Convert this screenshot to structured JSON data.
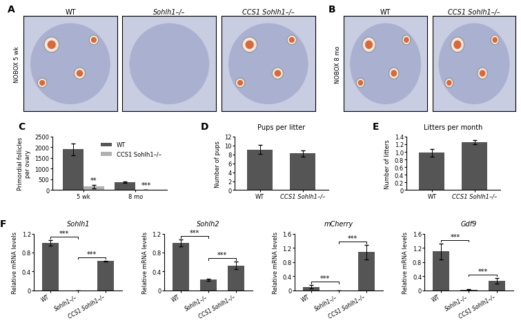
{
  "image_panels": [
    {
      "panel": "A",
      "side_label": "NOBOX 5 wk",
      "titles": [
        "WT",
        "Sohlh1–/–",
        "CCS1 Sohlh1–/–"
      ]
    },
    {
      "panel": "B",
      "side_label": "NOBOX 8 mo",
      "titles": [
        "WT",
        "CCS1 Sohlh1–/–"
      ]
    }
  ],
  "chart_data": [
    {
      "type": "bar",
      "panel": "C",
      "categories": [
        "5 wk",
        "8 mo"
      ],
      "series": [
        {
          "name": "WT",
          "color": "#555555",
          "values": [
            1900,
            370
          ],
          "errors": [
            270,
            20
          ]
        },
        {
          "name": "CCS1 Sohlh1–/–",
          "color": "#b0b0b0",
          "values": [
            170,
            15
          ],
          "errors": [
            80,
            5
          ]
        }
      ],
      "annotations": [
        {
          "category": "5 wk",
          "series": "CCS1 Sohlh1–/–",
          "text": "**"
        },
        {
          "category": "8 mo",
          "series": "CCS1 Sohlh1–/–",
          "text": "***"
        }
      ],
      "y_label": "Primordial follicles\nper ovary",
      "ylim": [
        0,
        2500
      ],
      "yticks": [
        0,
        500,
        1000,
        1500,
        2000,
        2500
      ],
      "legend": "upper right"
    },
    {
      "type": "bar",
      "panel": "D",
      "title": "Pups per litter",
      "categories": [
        "WT",
        "CCS1 Sohlh1–/–"
      ],
      "values": [
        9.1,
        8.2
      ],
      "errors": [
        1.0,
        0.7
      ],
      "color": "#555555",
      "y_label": "Number of pups",
      "ylim": [
        0,
        12
      ],
      "yticks": [
        0,
        2,
        4,
        6,
        8,
        10,
        12
      ]
    },
    {
      "type": "bar",
      "panel": "E",
      "title": "Litters per month",
      "categories": [
        "WT",
        "CCS1 Sohlh1–/–"
      ],
      "values": [
        0.98,
        1.25
      ],
      "errors": [
        0.1,
        0.05
      ],
      "color": "#555555",
      "y_label": "Number of litters",
      "ylim": [
        0,
        1.4
      ],
      "yticks": [
        0,
        0.2,
        0.4,
        0.6,
        0.8,
        1.0,
        1.2,
        1.4
      ]
    },
    {
      "type": "bar",
      "panel": "F",
      "title": "Sohlh1",
      "categories": [
        "WT",
        "Sohlh1–/–",
        "CCS1 Sohlh1–/–"
      ],
      "values": [
        1.0,
        0.0,
        0.62
      ],
      "errors": [
        0.06,
        0.0,
        0.01
      ],
      "color": "#555555",
      "y_label": "Relative mRNA levels",
      "ylim": [
        0,
        1.2
      ],
      "yticks": [
        0,
        0.4,
        0.8,
        1.2
      ],
      "brackets": [
        {
          "between": [
            "WT",
            "Sohlh1–/–"
          ],
          "text": "***"
        },
        {
          "between": [
            "Sohlh1–/–",
            "CCS1 Sohlh1–/–"
          ],
          "text": "***"
        }
      ]
    },
    {
      "type": "bar",
      "title": "Sohlh2",
      "categories": [
        "WT",
        "Sohlh1–/–",
        "CCS1 Sohlh1–/–"
      ],
      "values": [
        1.0,
        0.23,
        0.53
      ],
      "errors": [
        0.07,
        0.02,
        0.08
      ],
      "color": "#555555",
      "y_label": "Relative mRNA levels",
      "ylim": [
        0,
        1.2
      ],
      "yticks": [
        0,
        0.4,
        0.8,
        1.2
      ],
      "brackets": [
        {
          "between": [
            "WT",
            "Sohlh1–/–"
          ],
          "text": "***"
        },
        {
          "between": [
            "Sohlh1–/–",
            "CCS1 Sohlh1–/–"
          ],
          "text": "***"
        }
      ]
    },
    {
      "type": "bar",
      "title": "mCherry",
      "categories": [
        "WT",
        "Sohlh1–/–",
        "CCS1 Sohlh1–/–"
      ],
      "values": [
        0.1,
        0.0,
        1.08
      ],
      "errors": [
        0.05,
        0.0,
        0.2
      ],
      "color": "#555555",
      "y_label": "Relative mRNA levels",
      "ylim": [
        0,
        1.6
      ],
      "yticks": [
        0,
        0.4,
        0.8,
        1.2,
        1.6
      ],
      "brackets": [
        {
          "between": [
            "WT",
            "Sohlh1–/–"
          ],
          "text": "***"
        },
        {
          "between": [
            "Sohlh1–/–",
            "CCS1 Sohlh1–/–"
          ],
          "text": "***"
        }
      ]
    },
    {
      "type": "bar",
      "title": "Gdf9",
      "categories": [
        "WT",
        "Sohlh1–/–",
        "CCS1 Sohlh1–/–"
      ],
      "values": [
        1.1,
        0.02,
        0.27
      ],
      "errors": [
        0.22,
        0.01,
        0.08
      ],
      "color": "#555555",
      "y_label": "Relative mRNA levels",
      "ylim": [
        0,
        1.6
      ],
      "yticks": [
        0,
        0.4,
        0.8,
        1.2,
        1.6
      ],
      "brackets": [
        {
          "between": [
            "WT",
            "Sohlh1–/–"
          ],
          "text": "***"
        },
        {
          "between": [
            "Sohlh1–/–",
            "CCS1 Sohlh1–/–"
          ],
          "text": "***"
        }
      ]
    }
  ]
}
